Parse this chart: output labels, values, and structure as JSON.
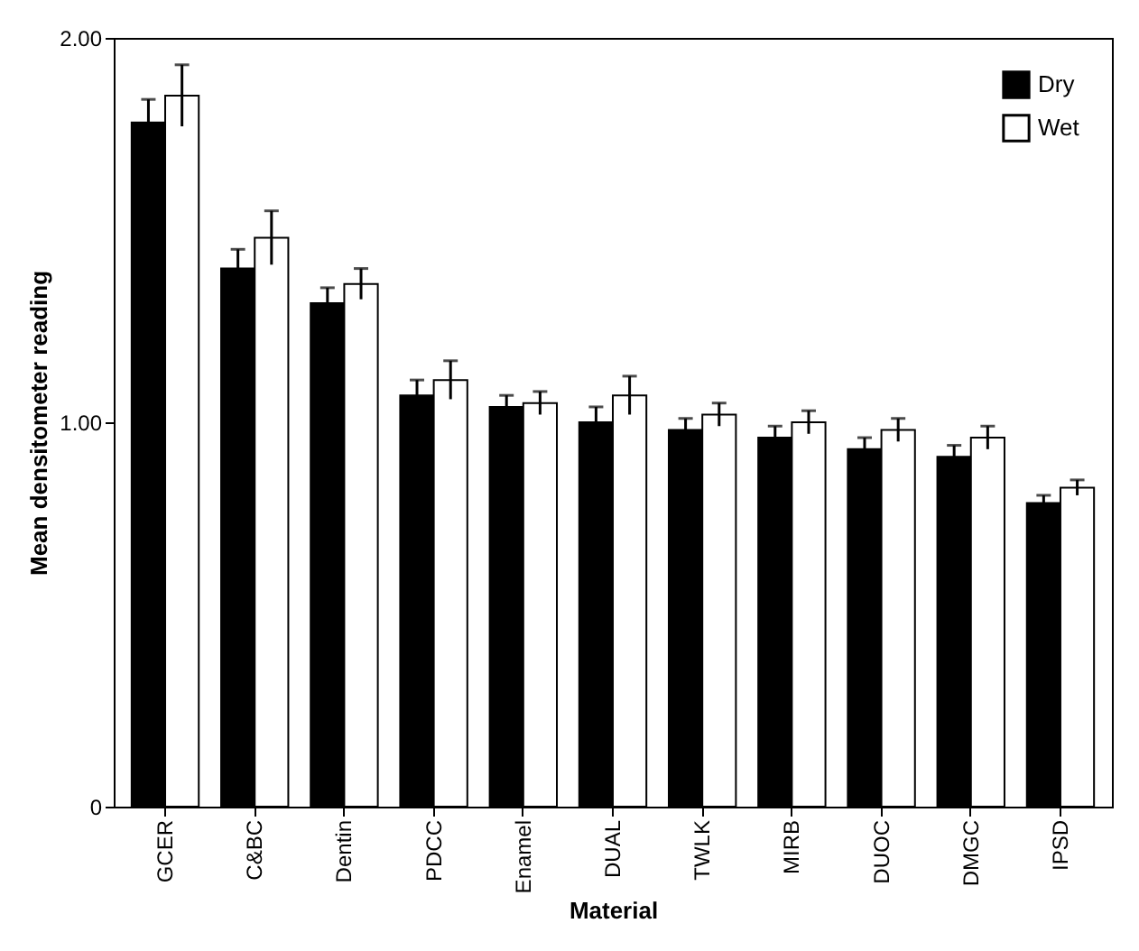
{
  "chart_data": {
    "type": "bar",
    "xlabel": "Material",
    "ylabel": "Mean densitometer reading",
    "categories": [
      "GCER",
      "C&BC",
      "Dentin",
      "PDCC",
      "Enamel",
      "DUAL",
      "TWLK",
      "MIRB",
      "DUOC",
      "DMGC",
      "IPSD"
    ],
    "series": [
      {
        "name": "Dry",
        "color": "#000000",
        "values": [
          1.78,
          1.4,
          1.31,
          1.07,
          1.04,
          1.0,
          0.98,
          0.96,
          0.93,
          0.91,
          0.79
        ],
        "errors": [
          0.06,
          0.05,
          0.04,
          0.04,
          0.03,
          0.04,
          0.03,
          0.03,
          0.03,
          0.03,
          0.02
        ]
      },
      {
        "name": "Wet",
        "color": "#ffffff",
        "values": [
          1.85,
          1.48,
          1.36,
          1.11,
          1.05,
          1.07,
          1.02,
          1.0,
          0.98,
          0.96,
          0.83
        ],
        "errors": [
          0.08,
          0.07,
          0.04,
          0.05,
          0.03,
          0.05,
          0.03,
          0.03,
          0.03,
          0.03,
          0.02
        ]
      }
    ],
    "ylim": [
      0,
      2.0
    ],
    "yticks": [
      0,
      {
        "value": 1.0,
        "label": "1.00"
      },
      {
        "value": 2.0,
        "label": "2.00"
      }
    ],
    "legend": "top right",
    "grid": false
  }
}
